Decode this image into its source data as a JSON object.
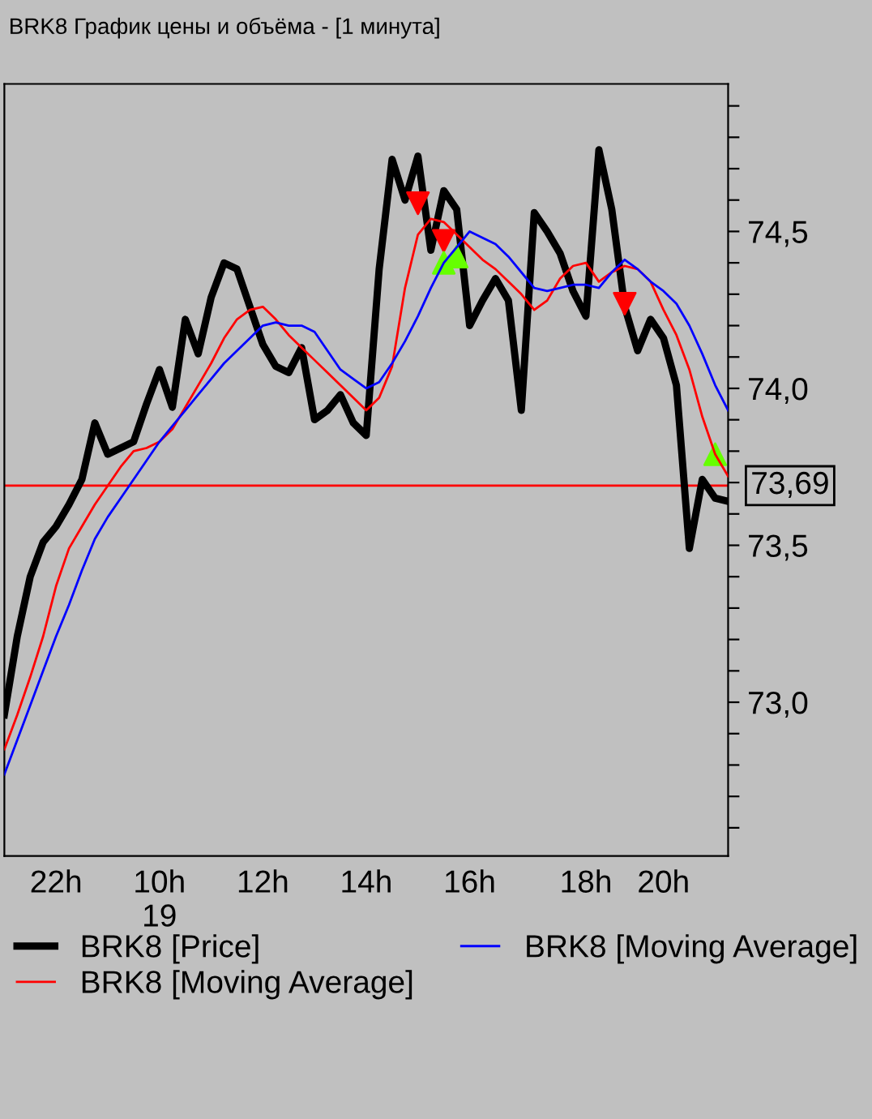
{
  "chart_data": {
    "type": "line",
    "title": "BRK8 График цены и объёма - [1 минута]",
    "categories": [
      null,
      null,
      null,
      null,
      "22h",
      null,
      null,
      null,
      null,
      null,
      null,
      null,
      "10h\n19",
      null,
      null,
      null,
      null,
      null,
      null,
      null,
      "12h",
      null,
      null,
      null,
      null,
      null,
      null,
      null,
      "14h",
      null,
      null,
      null,
      null,
      null,
      null,
      null,
      "16h",
      null,
      null,
      null,
      null,
      null,
      null,
      null,
      null,
      "18h",
      null,
      null,
      null,
      null,
      null,
      "20h",
      null,
      null,
      null,
      null,
      null
    ],
    "ylim": [
      72.51,
      74.97
    ],
    "yticks": [
      {
        "value": 72.6,
        "label": null
      },
      {
        "value": 72.7,
        "label": null
      },
      {
        "value": 72.8,
        "label": null
      },
      {
        "value": 72.9,
        "label": null
      },
      {
        "value": 73.0,
        "label": "73,0"
      },
      {
        "value": 73.1,
        "label": null
      },
      {
        "value": 73.2,
        "label": null
      },
      {
        "value": 73.3,
        "label": null
      },
      {
        "value": 73.4,
        "label": null
      },
      {
        "value": 73.5,
        "label": "73,5"
      },
      {
        "value": 73.6,
        "label": null
      },
      {
        "value": 73.7,
        "label": null
      },
      {
        "value": 73.8,
        "label": null
      },
      {
        "value": 73.9,
        "label": null
      },
      {
        "value": 74.0,
        "label": "74,0"
      },
      {
        "value": 74.1,
        "label": null
      },
      {
        "value": 74.2,
        "label": null
      },
      {
        "value": 74.3,
        "label": null
      },
      {
        "value": 74.4,
        "label": null
      },
      {
        "value": 74.5,
        "label": "74,5"
      },
      {
        "value": 74.6,
        "label": null
      },
      {
        "value": 74.7,
        "label": null
      },
      {
        "value": 74.8,
        "label": null
      },
      {
        "value": 74.9,
        "label": null
      }
    ],
    "grid": false,
    "legend": "bottom",
    "ref_lines": [
      {
        "axis": "y",
        "value": 73.69,
        "label": "73,69",
        "color": "#ff0000"
      }
    ],
    "series": [
      {
        "name": "BRK8 [Price]",
        "color": "#000000",
        "values": [
          72.96,
          73.21,
          73.4,
          73.51,
          73.56,
          73.63,
          73.71,
          73.89,
          73.79,
          73.81,
          73.83,
          73.95,
          74.06,
          73.94,
          74.22,
          74.11,
          74.29,
          74.4,
          74.38,
          74.26,
          74.14,
          74.07,
          74.05,
          74.13,
          73.9,
          73.93,
          73.98,
          73.89,
          73.85,
          74.38,
          74.73,
          74.6,
          74.74,
          74.44,
          74.63,
          74.57,
          74.2,
          74.28,
          74.35,
          74.28,
          73.93,
          74.56,
          74.5,
          74.43,
          74.31,
          74.23,
          74.76,
          74.57,
          74.26,
          74.12,
          74.22,
          74.16,
          74.01,
          73.49,
          73.71,
          73.65,
          73.64
        ]
      },
      {
        "name": "BRK8 [Moving Average]",
        "color": "#ff0000",
        "values": [
          72.85,
          72.96,
          73.08,
          73.21,
          73.37,
          73.49,
          73.56,
          73.63,
          73.69,
          73.75,
          73.8,
          73.81,
          73.83,
          73.87,
          73.94,
          74.01,
          74.08,
          74.16,
          74.22,
          74.25,
          74.26,
          74.22,
          74.17,
          74.13,
          74.09,
          74.05,
          74.01,
          73.97,
          73.93,
          73.97,
          74.07,
          74.32,
          74.49,
          74.54,
          74.53,
          74.49,
          74.45,
          74.41,
          74.38,
          74.34,
          74.3,
          74.25,
          74.28,
          74.35,
          74.39,
          74.4,
          74.34,
          74.37,
          74.39,
          74.38,
          74.34,
          74.25,
          74.17,
          74.06,
          73.91,
          73.79,
          73.72
        ]
      },
      {
        "name": "BRK8 [Moving Average]",
        "color": "#0000ff",
        "values": [
          72.77,
          72.88,
          72.99,
          73.1,
          73.21,
          73.31,
          73.42,
          73.52,
          73.59,
          73.65,
          73.71,
          73.77,
          73.83,
          73.88,
          73.93,
          73.98,
          74.03,
          74.08,
          74.12,
          74.16,
          74.2,
          74.21,
          74.2,
          74.2,
          74.18,
          74.12,
          74.06,
          74.03,
          74.0,
          74.02,
          74.08,
          74.15,
          74.23,
          74.32,
          74.4,
          74.45,
          74.5,
          74.48,
          74.46,
          74.42,
          74.37,
          74.32,
          74.31,
          74.32,
          74.33,
          74.33,
          74.32,
          74.37,
          74.41,
          74.38,
          74.34,
          74.31,
          74.27,
          74.2,
          74.11,
          74.01,
          73.93
        ]
      },
      {
        "type": "scatter",
        "marker": "triangle_down",
        "color": "#ff0000",
        "values": [
          null,
          null,
          null,
          null,
          null,
          null,
          null,
          null,
          null,
          null,
          null,
          null,
          null,
          null,
          null,
          null,
          null,
          null,
          null,
          null,
          null,
          null,
          null,
          null,
          null,
          null,
          null,
          null,
          null,
          null,
          null,
          null,
          74.59,
          null,
          74.47,
          null,
          null,
          null,
          null,
          null,
          null,
          null,
          null,
          null,
          null,
          null,
          null,
          null,
          74.27,
          null,
          null,
          null,
          null,
          null,
          null,
          null,
          null
        ]
      },
      {
        "type": "scatter",
        "marker": "triangle",
        "color": "#66ff00",
        "values": [
          null,
          null,
          null,
          null,
          null,
          null,
          null,
          null,
          null,
          null,
          null,
          null,
          null,
          null,
          null,
          null,
          null,
          null,
          null,
          null,
          null,
          null,
          null,
          null,
          null,
          null,
          null,
          null,
          null,
          null,
          null,
          null,
          null,
          null,
          74.4,
          74.42,
          null,
          null,
          null,
          null,
          null,
          null,
          null,
          null,
          null,
          null,
          null,
          null,
          null,
          null,
          null,
          null,
          null,
          null,
          null,
          73.79,
          null
        ]
      }
    ]
  }
}
